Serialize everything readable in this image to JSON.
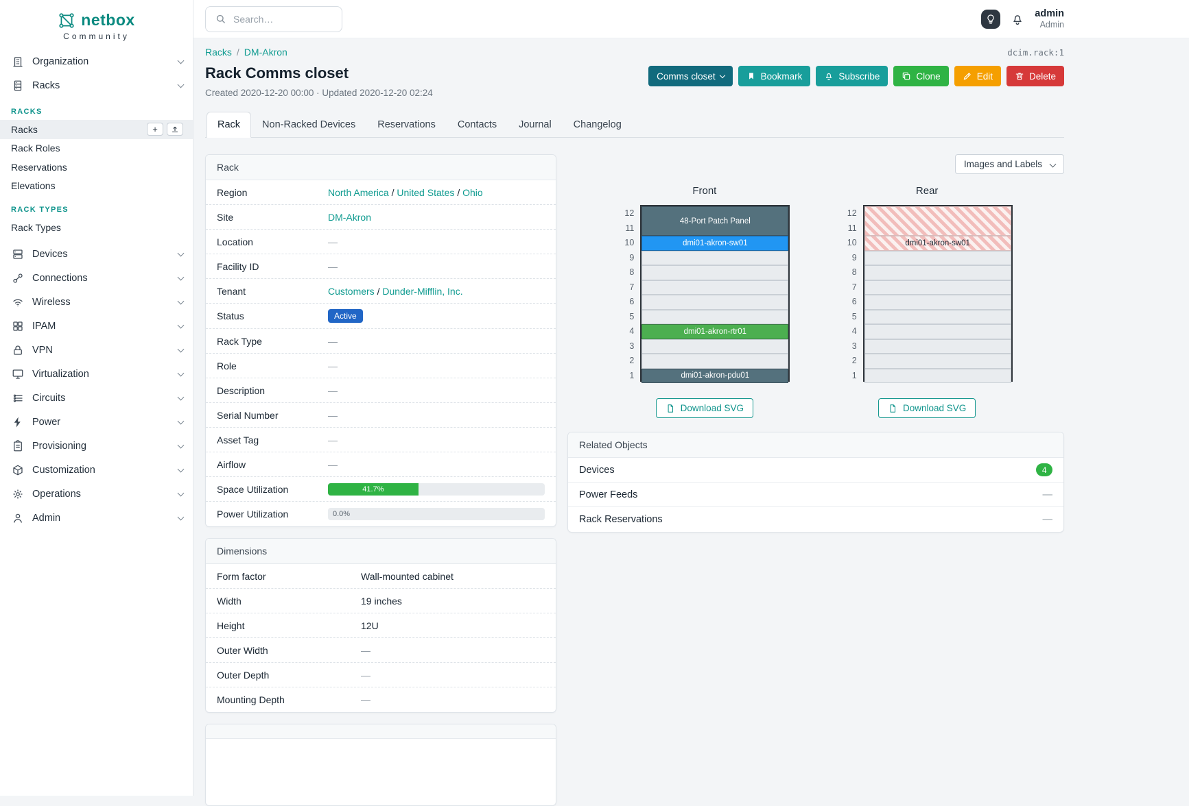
{
  "colors": {
    "accent": "#0f9b90",
    "status_active_badge": "#2166c6",
    "utilization_fill": "#2fb344",
    "device_slate": "#54717d",
    "device_blue": "#2196f3",
    "device_green": "#4caf50"
  },
  "sidebar": {
    "logo": {
      "title": "netbox",
      "subtitle": "Community"
    },
    "top_items": [
      {
        "label": "Organization"
      },
      {
        "label": "Racks"
      }
    ],
    "sections": [
      {
        "header": "RACKS",
        "items": [
          {
            "label": "Racks"
          },
          {
            "label": "Rack Roles"
          },
          {
            "label": "Reservations"
          },
          {
            "label": "Elevations"
          }
        ]
      },
      {
        "header": "RACK TYPES",
        "items": [
          {
            "label": "Rack Types"
          }
        ]
      }
    ],
    "menu": [
      {
        "label": "Devices"
      },
      {
        "label": "Connections"
      },
      {
        "label": "Wireless"
      },
      {
        "label": "IPAM"
      },
      {
        "label": "VPN"
      },
      {
        "label": "Virtualization"
      },
      {
        "label": "Circuits"
      },
      {
        "label": "Power"
      },
      {
        "label": "Provisioning"
      },
      {
        "label": "Customization"
      },
      {
        "label": "Operations"
      },
      {
        "label": "Admin"
      }
    ],
    "icons": {
      "add": "+",
      "import": "upload-arrow"
    }
  },
  "topbar": {
    "search_placeholder": "Search…",
    "user": {
      "name": "admin",
      "role": "Admin"
    }
  },
  "breadcrumb": {
    "items": [
      "Racks",
      "DM-Akron"
    ],
    "separator": "/"
  },
  "page": {
    "title": "Rack Comms closet",
    "meta": "Created 2020-12-20 00:00 · Updated 2020-12-20 02:24",
    "object_ref": "dcim.rack:1"
  },
  "actions": {
    "status_dropdown": "Comms closet",
    "bookmark": "Bookmark",
    "subscribe": "Subscribe",
    "clone": "Clone",
    "edit": "Edit",
    "delete": "Delete"
  },
  "tabs": [
    {
      "label": "Rack"
    },
    {
      "label": "Non-Racked Devices"
    },
    {
      "label": "Reservations"
    },
    {
      "label": "Contacts"
    },
    {
      "label": "Journal"
    },
    {
      "label": "Changelog"
    }
  ],
  "rack_panel": {
    "title": "Rack",
    "rows": [
      {
        "label": "Region",
        "links": [
          "North America",
          "United States",
          "Ohio"
        ]
      },
      {
        "label": "Site",
        "links": [
          "DM-Akron"
        ]
      },
      {
        "label": "Location",
        "value": "—"
      },
      {
        "label": "Facility ID",
        "value": "—"
      },
      {
        "label": "Tenant",
        "links": [
          "Customers",
          "Dunder-Mifflin, Inc."
        ]
      },
      {
        "label": "Status",
        "badge": "Active"
      },
      {
        "label": "Rack Type",
        "value": "—"
      },
      {
        "label": "Role",
        "value": "—"
      },
      {
        "label": "Description",
        "value": "—"
      },
      {
        "label": "Serial Number",
        "value": "—"
      },
      {
        "label": "Asset Tag",
        "value": "—"
      },
      {
        "label": "Airflow",
        "value": "—"
      },
      {
        "label": "Space Utilization",
        "progress": {
          "percent": 41.7,
          "text": "41.7%"
        }
      },
      {
        "label": "Power Utilization",
        "progress": {
          "percent": 0,
          "text": "0.0%"
        }
      }
    ]
  },
  "dimensions_panel": {
    "title": "Dimensions",
    "rows": [
      {
        "label": "Form factor",
        "value": "Wall-mounted cabinet"
      },
      {
        "label": "Width",
        "value": "19 inches"
      },
      {
        "label": "Height",
        "value": "12U"
      },
      {
        "label": "Outer Width",
        "value": "—"
      },
      {
        "label": "Outer Depth",
        "value": "—"
      },
      {
        "label": "Mounting Depth",
        "value": "—"
      }
    ]
  },
  "elevations": {
    "view_toggle": "Images and Labels",
    "front": {
      "title": "Front",
      "download": "Download SVG",
      "units": 12,
      "devices": [
        {
          "name": "48-Port Patch Panel",
          "top_u": 12,
          "span": 2,
          "color": "#54717d"
        },
        {
          "name": "dmi01-akron-sw01",
          "top_u": 10,
          "span": 1,
          "color": "#2196f3"
        },
        {
          "name": "dmi01-akron-rtr01",
          "top_u": 4,
          "span": 1,
          "color": "#4caf50"
        },
        {
          "name": "dmi01-akron-pdu01",
          "top_u": 1,
          "span": 1,
          "color": "#54717d"
        }
      ]
    },
    "rear": {
      "title": "Rear",
      "download": "Download SVG",
      "units": 12,
      "hatched": [
        {
          "top_u": 12,
          "span": 2
        },
        {
          "top_u": 10,
          "span": 1,
          "label": "dmi01-akron-sw01"
        }
      ]
    }
  },
  "related_panel": {
    "title": "Related Objects",
    "rows": [
      {
        "label": "Devices",
        "badge": "4"
      },
      {
        "label": "Power Feeds",
        "value": "—"
      },
      {
        "label": "Rack Reservations",
        "value": "—"
      }
    ]
  }
}
